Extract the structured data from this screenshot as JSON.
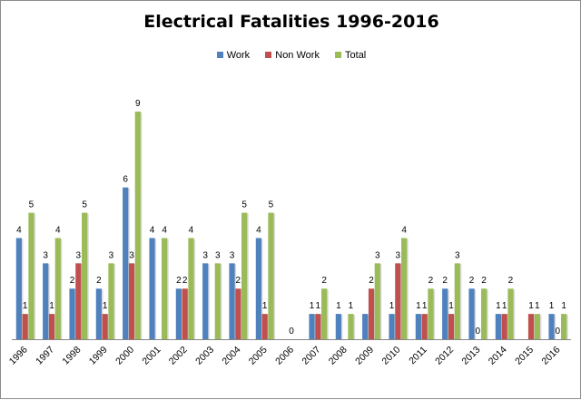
{
  "chart_data": {
    "type": "bar",
    "title": "Electrical Fatalities 1996-2016",
    "xlabel": "",
    "ylabel": "",
    "ylim": [
      0,
      9
    ],
    "grid": false,
    "legend_position": "top",
    "categories": [
      "1996",
      "1997",
      "1998",
      "1999",
      "2000",
      "2001",
      "2002",
      "2003",
      "2004",
      "2005",
      "2006",
      "2007",
      "2008",
      "2009",
      "2010",
      "2011",
      "2012",
      "2013",
      "2014",
      "2015",
      "2016"
    ],
    "series": [
      {
        "name": "Work",
        "color": "#4f81bd",
        "values": [
          4,
          3,
          2,
          2,
          6,
          4,
          2,
          3,
          3,
          4,
          null,
          1,
          1,
          1,
          1,
          1,
          2,
          2,
          1,
          null,
          1
        ],
        "labels": [
          "4",
          "3",
          "2",
          "2",
          "6",
          "4",
          "2",
          "3",
          "3",
          "4",
          "",
          "1",
          "1",
          "",
          "1",
          "1",
          "2",
          "2",
          "1",
          "",
          "1"
        ]
      },
      {
        "name": "Non Work",
        "color": "#c0504d",
        "values": [
          1,
          1,
          3,
          1,
          3,
          null,
          2,
          null,
          2,
          1,
          0,
          1,
          null,
          2,
          3,
          1,
          1,
          0,
          1,
          1,
          0
        ],
        "labels": [
          "1",
          "1",
          "3",
          "1",
          "3",
          "",
          "2",
          "",
          "2",
          "1",
          "0",
          "1",
          "",
          "2",
          "3",
          "1",
          "1",
          "0",
          "1",
          "1",
          "0"
        ]
      },
      {
        "name": "Total",
        "color": "#9bbb59",
        "values": [
          5,
          4,
          5,
          3,
          9,
          4,
          4,
          3,
          5,
          5,
          null,
          2,
          1,
          3,
          4,
          2,
          3,
          2,
          2,
          1,
          1
        ],
        "labels": [
          "5",
          "4",
          "5",
          "3",
          "9",
          "4",
          "4",
          "3",
          "5",
          "5",
          "",
          "2",
          "1",
          "3",
          "4",
          "2",
          "3",
          "2",
          "2",
          "1",
          "1"
        ]
      }
    ]
  }
}
